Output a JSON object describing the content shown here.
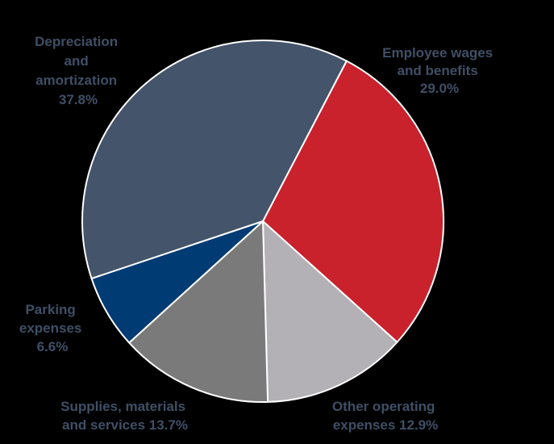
{
  "chart_data": {
    "type": "pie",
    "title": "",
    "slices": [
      {
        "label": "Employee wages and benefits",
        "value": 29.0,
        "color": "#C9222D"
      },
      {
        "label": "Other operating expenses",
        "value": 12.9,
        "color": "#B3B1B5"
      },
      {
        "label": "Supplies, materials and services",
        "value": 13.7,
        "color": "#7A7A7A"
      },
      {
        "label": "Parking expenses",
        "value": 6.6,
        "color": "#003B73"
      },
      {
        "label": "Depreciation and amortization",
        "value": 37.8,
        "color": "#44546A"
      }
    ],
    "data_labels": [
      {
        "lines": [
          "Employee wages",
          "and benefits",
          "29.0%"
        ]
      },
      {
        "lines": [
          "Other operating",
          "expenses 12.9%"
        ]
      },
      {
        "lines": [
          "Supplies, materials",
          "and services 13.7%"
        ]
      },
      {
        "lines": [
          "Parking",
          "expenses",
          "6.6%"
        ]
      },
      {
        "lines": [
          "Depreciation",
          "and",
          "amortization",
          "37.8%"
        ]
      }
    ],
    "label_color": "#3F4F66",
    "background": "#000000",
    "slice_border_color": "#FFFFFF",
    "start_angle_deg": 27.6,
    "direction": "clockwise",
    "legend": "none"
  }
}
